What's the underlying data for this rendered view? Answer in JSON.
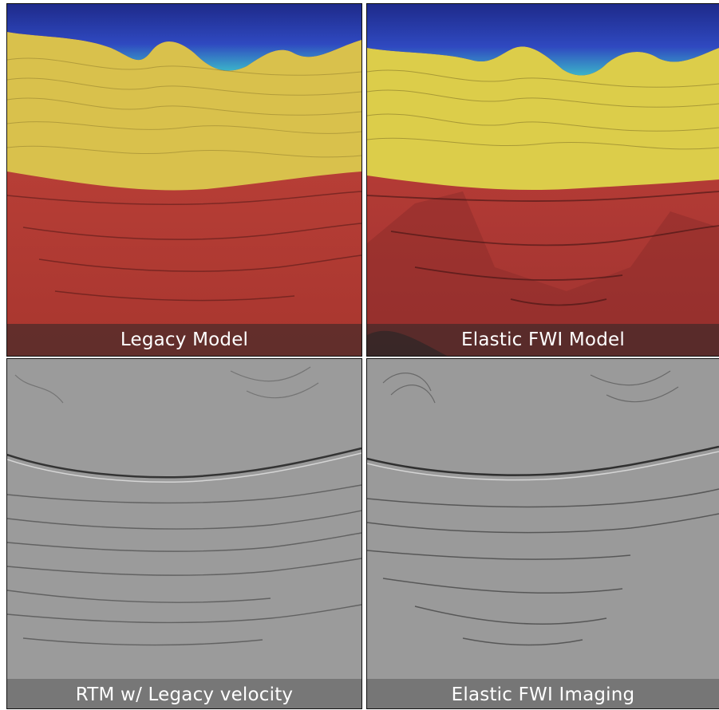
{
  "panels": [
    {
      "caption": "Legacy Model",
      "style": "velocity"
    },
    {
      "caption": "Elastic FWI Model",
      "style": "velocity"
    },
    {
      "caption": "RTM w/ Legacy velocity",
      "style": "seismic"
    },
    {
      "caption": "Elastic FWI Imaging",
      "style": "seismic"
    }
  ],
  "colors": {
    "water": "#2d3fb0",
    "water_edge": "#3fb6c6",
    "salt": "#d6c04a",
    "sediment": "#b53a38",
    "seismic_gray": "#9a9a9a"
  }
}
